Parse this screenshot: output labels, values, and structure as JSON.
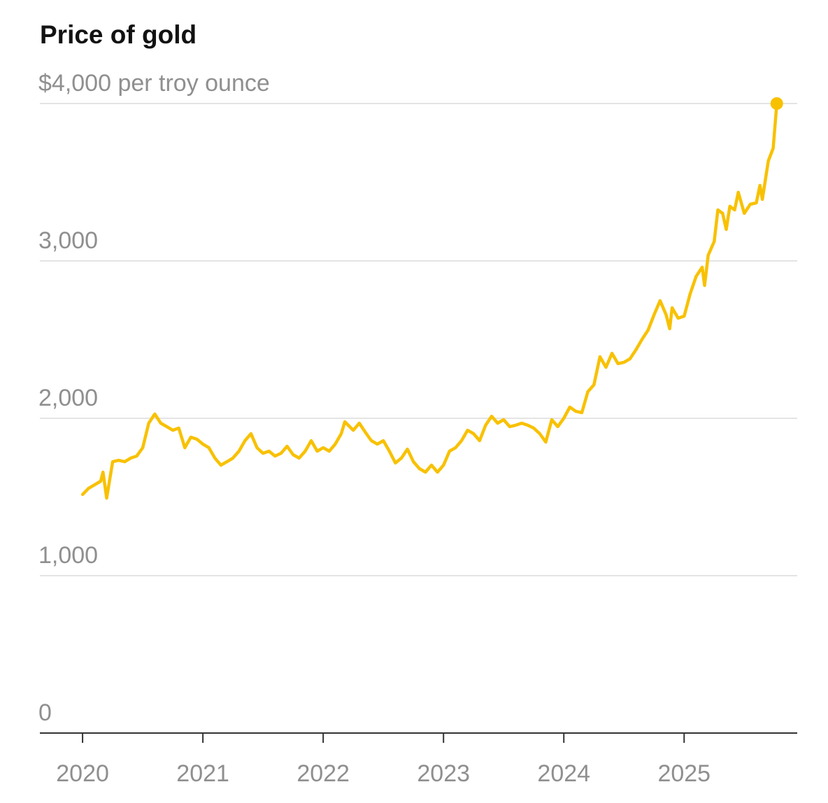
{
  "chart_data": {
    "type": "line",
    "title": "Price of gold",
    "color": "#f8c100",
    "grid": true,
    "xlim": [
      2019.645,
      2025.94
    ],
    "xticks": [
      2020,
      2021,
      2022,
      2023,
      2024,
      2025
    ],
    "ylim": [
      0,
      4000
    ],
    "yticks": [
      0,
      {
        "value": 1000,
        "label": "1,000"
      },
      {
        "value": 2000,
        "label": "2,000"
      },
      {
        "value": 3000,
        "label": "3,000"
      },
      {
        "value": 4000,
        "label": "$4,000 per troy ounce"
      }
    ],
    "x": [
      2020.0,
      2020.05,
      2020.15,
      2020.17,
      2020.2,
      2020.25,
      2020.3,
      2020.35,
      2020.4,
      2020.45,
      2020.5,
      2020.55,
      2020.6,
      2020.65,
      2020.7,
      2020.75,
      2020.8,
      2020.85,
      2020.9,
      2020.95,
      2021.0,
      2021.05,
      2021.1,
      2021.15,
      2021.2,
      2021.25,
      2021.3,
      2021.35,
      2021.4,
      2021.45,
      2021.5,
      2021.55,
      2021.6,
      2021.65,
      2021.7,
      2021.75,
      2021.8,
      2021.85,
      2021.9,
      2021.95,
      2022.0,
      2022.05,
      2022.1,
      2022.15,
      2022.18,
      2022.25,
      2022.3,
      2022.35,
      2022.4,
      2022.45,
      2022.5,
      2022.55,
      2022.6,
      2022.65,
      2022.7,
      2022.75,
      2022.8,
      2022.85,
      2022.9,
      2022.95,
      2023.0,
      2023.05,
      2023.1,
      2023.15,
      2023.2,
      2023.25,
      2023.3,
      2023.35,
      2023.4,
      2023.45,
      2023.5,
      2023.55,
      2023.6,
      2023.65,
      2023.7,
      2023.75,
      2023.8,
      2023.85,
      2023.9,
      2023.95,
      2024.0,
      2024.05,
      2024.1,
      2024.15,
      2024.2,
      2024.25,
      2024.3,
      2024.35,
      2024.4,
      2024.45,
      2024.5,
      2024.55,
      2024.6,
      2024.65,
      2024.7,
      2024.75,
      2024.8,
      2024.85,
      2024.88,
      2024.9,
      2024.95,
      2025.0,
      2025.05,
      2025.1,
      2025.15,
      2025.17,
      2025.2,
      2025.25,
      2025.28,
      2025.32,
      2025.35,
      2025.38,
      2025.42,
      2025.45,
      2025.5,
      2025.55,
      2025.6,
      2025.63,
      2025.65,
      2025.7,
      2025.74,
      2025.77
    ],
    "series": [
      {
        "name": "Gold",
        "color": "#f8c100",
        "values": [
          1516,
          1555,
          1600,
          1658,
          1493,
          1724,
          1733,
          1724,
          1747,
          1760,
          1813,
          1969,
          2027,
          1969,
          1947,
          1924,
          1938,
          1813,
          1880,
          1867,
          1836,
          1813,
          1747,
          1702,
          1724,
          1747,
          1791,
          1858,
          1902,
          1813,
          1778,
          1791,
          1760,
          1778,
          1822,
          1769,
          1747,
          1791,
          1858,
          1791,
          1813,
          1791,
          1836,
          1902,
          1978,
          1924,
          1969,
          1911,
          1858,
          1836,
          1858,
          1791,
          1716,
          1747,
          1804,
          1724,
          1680,
          1658,
          1702,
          1658,
          1702,
          1791,
          1813,
          1858,
          1924,
          1902,
          1858,
          1956,
          2013,
          1969,
          1991,
          1947,
          1956,
          1969,
          1956,
          1938,
          1902,
          1849,
          1991,
          1947,
          2000,
          2071,
          2044,
          2036,
          2169,
          2213,
          2391,
          2324,
          2413,
          2347,
          2356,
          2378,
          2436,
          2502,
          2560,
          2658,
          2747,
          2658,
          2569,
          2702,
          2636,
          2649,
          2791,
          2902,
          2960,
          2844,
          3036,
          3124,
          3324,
          3302,
          3200,
          3347,
          3324,
          3436,
          3302,
          3360,
          3369,
          3480,
          3391,
          3636,
          3716,
          4000
        ]
      }
    ]
  }
}
